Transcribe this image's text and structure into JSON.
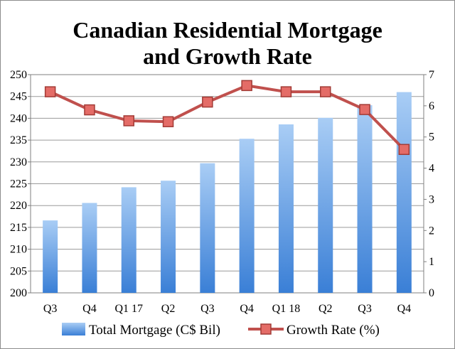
{
  "chart_data": {
    "type": "bar",
    "title": "Canadian Residential Mortgage and Growth Rate",
    "title_lines": [
      "Canadian Residential Mortgage",
      "and Growth Rate"
    ],
    "categories": [
      "Q3",
      "Q4",
      "Q1 17",
      "Q2",
      "Q3",
      "Q4",
      "Q1 18",
      "Q2",
      "Q3",
      "Q4"
    ],
    "series": [
      {
        "name": "Total Mortgage (C$ Bil)",
        "type": "bar",
        "axis": "left",
        "color": "#4a90e2",
        "values": [
          216.6,
          220.6,
          224.2,
          225.7,
          229.7,
          235.3,
          238.6,
          240.1,
          243.0,
          246.0
        ]
      },
      {
        "name": "Growth Rate (%)",
        "type": "line",
        "axis": "right",
        "color": "#c0504d",
        "marker_color": "#e46c67",
        "values": [
          6.45,
          5.87,
          5.52,
          5.49,
          6.12,
          6.65,
          6.45,
          6.45,
          5.88,
          4.6
        ]
      }
    ],
    "y_left": {
      "ylim": [
        200,
        250
      ],
      "ticks": [
        200,
        205,
        210,
        215,
        220,
        225,
        230,
        235,
        240,
        245,
        250
      ]
    },
    "y_right": {
      "ylim": [
        0,
        7
      ],
      "ticks": [
        0,
        1,
        2,
        3,
        4,
        5,
        6,
        7
      ]
    },
    "xlabel": "",
    "ylabel": "",
    "grid": true,
    "legend": "bottom"
  }
}
